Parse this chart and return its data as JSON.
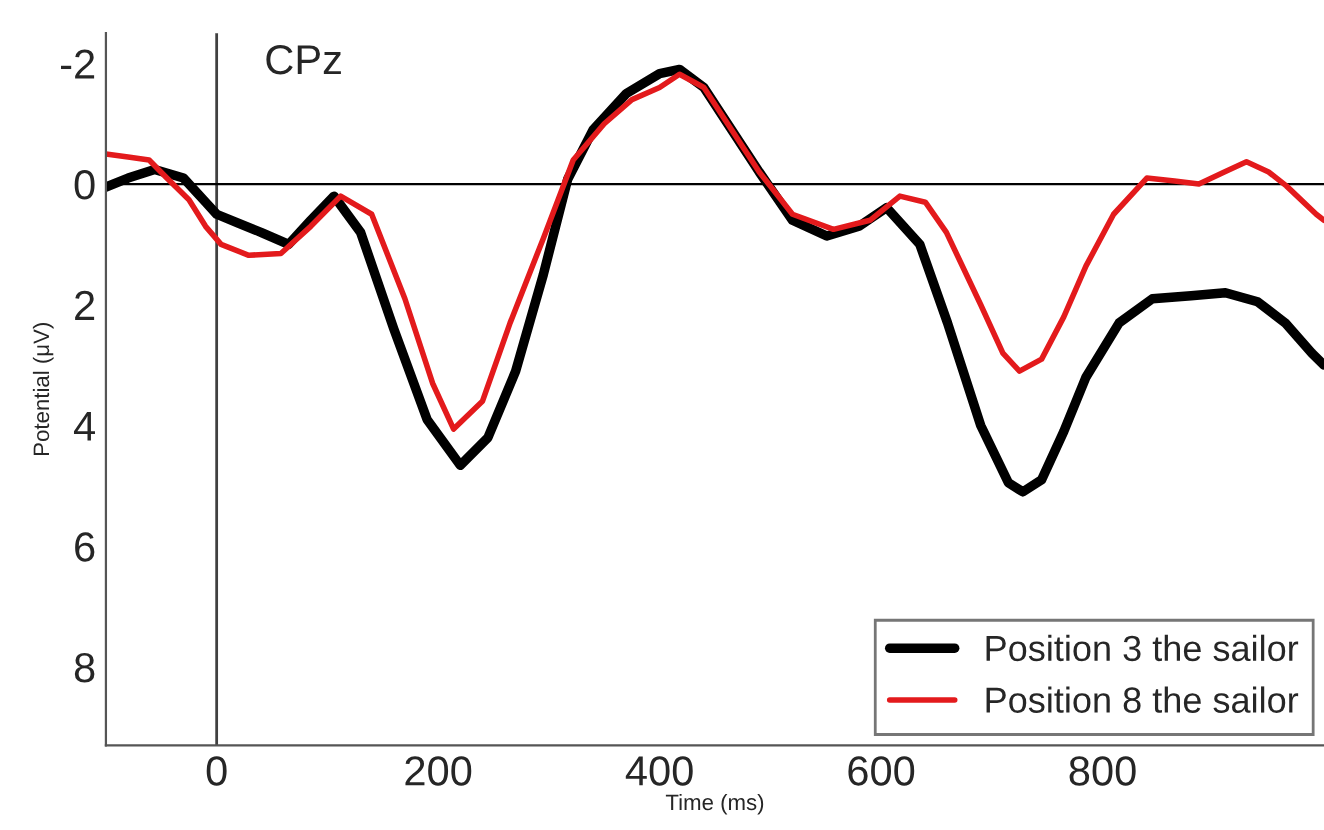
{
  "chart_data": {
    "type": "line",
    "title": "CPz",
    "xlabel": "Time (ms)",
    "ylabel": "Potential (μV)",
    "xlim": [
      -100,
      1000
    ],
    "xticks": [
      0,
      200,
      400,
      600,
      800
    ],
    "ylim": [
      9.3,
      -2.5
    ],
    "yticks": [
      -2,
      0,
      2,
      4,
      6,
      8
    ],
    "grid": false,
    "legend": "bottom right",
    "line_style": "solid",
    "marker": "none",
    "ref_lines": [
      {
        "axis": "x",
        "value": 0,
        "color": "#404040"
      },
      {
        "axis": "y",
        "value": 0,
        "color": "#000000"
      }
    ],
    "series": [
      {
        "name": "Position 3 the sailor",
        "color": "#000000",
        "x": [
          -100,
          -80,
          -56,
          -30,
          -10,
          0,
          20,
          40,
          65,
          85,
          106,
          130,
          160,
          190,
          220,
          245,
          270,
          295,
          317,
          340,
          370,
          400,
          418,
          440,
          465,
          490,
          520,
          551,
          580,
          605,
          635,
          660,
          690,
          715,
          728,
          745,
          765,
          785,
          815,
          845,
          880,
          911,
          940,
          965,
          989,
          1000
        ],
        "values": [
          0.05,
          -0.1,
          -0.24,
          -0.1,
          0.3,
          0.5,
          0.65,
          0.8,
          1.0,
          0.6,
          0.2,
          0.8,
          2.4,
          3.9,
          4.66,
          4.2,
          3.1,
          1.5,
          -0.08,
          -0.9,
          -1.5,
          -1.83,
          -1.9,
          -1.6,
          -0.9,
          -0.2,
          0.6,
          0.86,
          0.7,
          0.39,
          1.0,
          2.3,
          4.0,
          4.95,
          5.1,
          4.9,
          4.1,
          3.2,
          2.3,
          1.9,
          1.85,
          1.8,
          1.95,
          2.3,
          2.8,
          3.0
        ]
      },
      {
        "name": "Position 8 the sailor",
        "color": "#e31a1c",
        "x": [
          -100,
          -80,
          -61,
          -45,
          -25,
          -10,
          4,
          29,
          58,
          85,
          112,
          140,
          170,
          195,
          214,
          240,
          265,
          295,
          322,
          350,
          375,
          400,
          418,
          440,
          465,
          490,
          520,
          557,
          590,
          617,
          640,
          659,
          690,
          710,
          725,
          745,
          765,
          785,
          810,
          840,
          865,
          887,
          910,
          930,
          950,
          966,
          993,
          1000
        ],
        "values": [
          -0.5,
          -0.45,
          -0.4,
          -0.1,
          0.26,
          0.7,
          1.0,
          1.18,
          1.15,
          0.7,
          0.2,
          0.5,
          1.9,
          3.3,
          4.06,
          3.6,
          2.3,
          0.9,
          -0.4,
          -1.0,
          -1.4,
          -1.6,
          -1.82,
          -1.6,
          -0.9,
          -0.2,
          0.5,
          0.75,
          0.6,
          0.2,
          0.3,
          0.8,
          2.0,
          2.8,
          3.1,
          2.9,
          2.2,
          1.36,
          0.5,
          -0.1,
          -0.05,
          0.0,
          -0.2,
          -0.37,
          -0.2,
          0.03,
          0.5,
          0.6
        ]
      }
    ]
  }
}
